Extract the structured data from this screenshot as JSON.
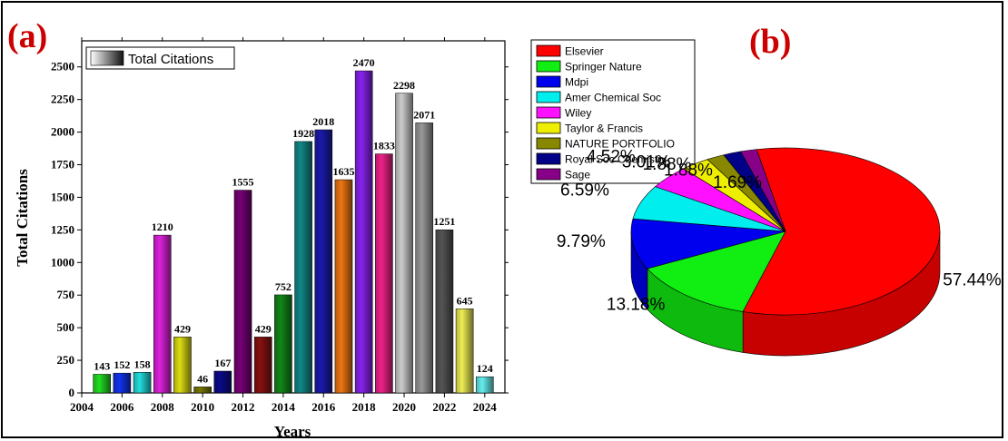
{
  "panels": {
    "a": "(a)",
    "b": "(b)"
  },
  "chart_data": [
    {
      "type": "bar",
      "xlabel": "Years",
      "ylabel": "Total Citations",
      "legend": "Total Citations",
      "legend_placement": "top-left",
      "x_ticks": [
        "2004",
        "2006",
        "2008",
        "2010",
        "2012",
        "2014",
        "2016",
        "2018",
        "2020",
        "2022",
        "2024"
      ],
      "y_ticks": [
        "0",
        "250",
        "500",
        "750",
        "1000",
        "1250",
        "1500",
        "1750",
        "2000",
        "2250",
        "2500"
      ],
      "xlim": [
        2004,
        2025
      ],
      "ylim": [
        0,
        2700
      ],
      "x": [
        2005,
        2006,
        2007,
        2008,
        2009,
        2010,
        2011,
        2012,
        2013,
        2014,
        2015,
        2016,
        2017,
        2018,
        2019,
        2020,
        2021,
        2022,
        2023,
        2024
      ],
      "values": [
        143,
        152,
        158,
        1210,
        429,
        46,
        167,
        1555,
        429,
        752,
        1928,
        2018,
        1635,
        2470,
        1833,
        2298,
        2071,
        1251,
        645,
        124
      ],
      "labels": [
        "143",
        "152",
        "158",
        "1210",
        "429",
        "46",
        "167",
        "1555",
        "429",
        "752",
        "1928",
        "2018",
        "1635",
        "2470",
        "1833",
        "2298",
        "2071",
        "1251",
        "645",
        "124"
      ],
      "colors": [
        "#22dd22",
        "#1133ee",
        "#22dddd",
        "#dd22dd",
        "#dddd11",
        "#777700",
        "#0a0a88",
        "#770077",
        "#881111",
        "#11881a",
        "#118888",
        "#1a1aaa",
        "#ee7711",
        "#8822ee",
        "#ee2288",
        "#cccccc",
        "#999999",
        "#555555",
        "#eeee55",
        "#66eeee"
      ]
    },
    {
      "type": "pie",
      "categories": [
        "Elsevier",
        "Springer Nature",
        "Mdpi",
        "Amer Chemical Soc",
        "Wiley",
        "Taylor & Francis",
        "NATURE PORTFOLIO",
        "Royal Soc Chemistry",
        "Sage"
      ],
      "values": [
        57.44,
        13.18,
        9.79,
        6.59,
        4.52,
        3.01,
        1.88,
        1.88,
        1.69
      ],
      "labels": [
        "57.44%",
        "13.18%",
        "9.79%",
        "6.59%",
        "4.52%",
        "3.01%",
        "1.88%",
        "1.88%",
        "1.69%"
      ],
      "colors": [
        "#ff0000",
        "#11ee11",
        "#0000ee",
        "#00eeee",
        "#ff11ff",
        "#eeee00",
        "#888800",
        "#000088",
        "#880088"
      ],
      "legend_placement": "top-left"
    }
  ]
}
